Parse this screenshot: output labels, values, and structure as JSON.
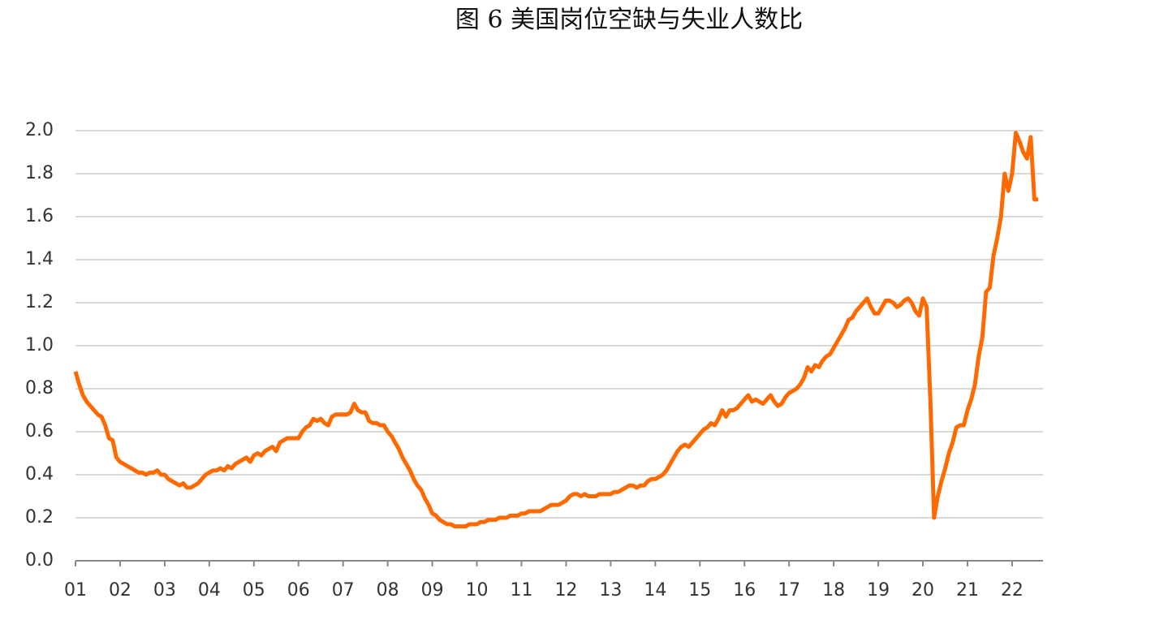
{
  "chart_data": {
    "type": "line",
    "title": "图 6 美国岗位空缺与失业人数比",
    "categories": [
      "01",
      null,
      null,
      null,
      null,
      null,
      null,
      null,
      null,
      null,
      null,
      null,
      "02",
      null,
      null,
      null,
      null,
      null,
      null,
      null,
      null,
      null,
      null,
      null,
      "03",
      null,
      null,
      null,
      null,
      null,
      null,
      null,
      null,
      null,
      null,
      null,
      "04",
      null,
      null,
      null,
      null,
      null,
      null,
      null,
      null,
      null,
      null,
      null,
      "05",
      null,
      null,
      null,
      null,
      null,
      null,
      null,
      null,
      null,
      null,
      null,
      "06",
      null,
      null,
      null,
      null,
      null,
      null,
      null,
      null,
      null,
      null,
      null,
      "07",
      null,
      null,
      null,
      null,
      null,
      null,
      null,
      null,
      null,
      null,
      null,
      "08",
      null,
      null,
      null,
      null,
      null,
      null,
      null,
      null,
      null,
      null,
      null,
      "09",
      null,
      null,
      null,
      null,
      null,
      null,
      null,
      null,
      null,
      null,
      null,
      "10",
      null,
      null,
      null,
      null,
      null,
      null,
      null,
      null,
      null,
      null,
      null,
      "11",
      null,
      null,
      null,
      null,
      null,
      null,
      null,
      null,
      null,
      null,
      null,
      "12",
      null,
      null,
      null,
      null,
      null,
      null,
      null,
      null,
      null,
      null,
      null,
      "13",
      null,
      null,
      null,
      null,
      null,
      null,
      null,
      null,
      null,
      null,
      null,
      "14",
      null,
      null,
      null,
      null,
      null,
      null,
      null,
      null,
      null,
      null,
      null,
      "15",
      null,
      null,
      null,
      null,
      null,
      null,
      null,
      null,
      null,
      null,
      null,
      "16",
      null,
      null,
      null,
      null,
      null,
      null,
      null,
      null,
      null,
      null,
      null,
      "17",
      null,
      null,
      null,
      null,
      null,
      null,
      null,
      null,
      null,
      null,
      null,
      "18",
      null,
      null,
      null,
      null,
      null,
      null,
      null,
      null,
      null,
      null,
      null,
      "19",
      null,
      null,
      null,
      null,
      null,
      null,
      null,
      null,
      null,
      null,
      null,
      "20",
      null,
      null,
      null,
      null,
      null,
      null,
      null,
      null,
      null,
      null,
      null,
      "21",
      null,
      null,
      null,
      null,
      null,
      null,
      null,
      null,
      null,
      null,
      null,
      "22",
      null,
      null,
      null,
      null,
      null,
      null,
      null
    ],
    "values": [
      0.88,
      0.82,
      0.77,
      0.74,
      0.72,
      0.7,
      0.68,
      0.67,
      0.63,
      0.57,
      0.56,
      0.48,
      0.46,
      0.45,
      0.44,
      0.43,
      0.42,
      0.41,
      0.41,
      0.4,
      0.41,
      0.41,
      0.42,
      0.4,
      0.4,
      0.38,
      0.37,
      0.36,
      0.35,
      0.36,
      0.34,
      0.34,
      0.35,
      0.36,
      0.38,
      0.4,
      0.41,
      0.42,
      0.42,
      0.43,
      0.42,
      0.44,
      0.43,
      0.45,
      0.46,
      0.47,
      0.48,
      0.46,
      0.49,
      0.5,
      0.49,
      0.51,
      0.52,
      0.53,
      0.51,
      0.55,
      0.56,
      0.57,
      0.57,
      0.57,
      0.57,
      0.6,
      0.62,
      0.63,
      0.66,
      0.65,
      0.66,
      0.64,
      0.63,
      0.67,
      0.68,
      0.68,
      0.68,
      0.68,
      0.69,
      0.73,
      0.7,
      0.69,
      0.69,
      0.65,
      0.64,
      0.64,
      0.63,
      0.63,
      0.6,
      0.58,
      0.55,
      0.52,
      0.48,
      0.45,
      0.42,
      0.38,
      0.35,
      0.33,
      0.29,
      0.26,
      0.22,
      0.21,
      0.19,
      0.18,
      0.17,
      0.17,
      0.16,
      0.16,
      0.16,
      0.16,
      0.17,
      0.17,
      0.17,
      0.18,
      0.18,
      0.19,
      0.19,
      0.19,
      0.2,
      0.2,
      0.2,
      0.21,
      0.21,
      0.21,
      0.22,
      0.22,
      0.23,
      0.23,
      0.23,
      0.23,
      0.24,
      0.25,
      0.26,
      0.26,
      0.26,
      0.27,
      0.28,
      0.3,
      0.31,
      0.31,
      0.3,
      0.31,
      0.3,
      0.3,
      0.3,
      0.31,
      0.31,
      0.31,
      0.31,
      0.32,
      0.32,
      0.33,
      0.34,
      0.35,
      0.35,
      0.34,
      0.35,
      0.35,
      0.37,
      0.38,
      0.38,
      0.39,
      0.4,
      0.42,
      0.45,
      0.48,
      0.51,
      0.53,
      0.54,
      0.53,
      0.55,
      0.57,
      0.59,
      0.61,
      0.62,
      0.64,
      0.63,
      0.66,
      0.7,
      0.67,
      0.7,
      0.7,
      0.71,
      0.73,
      0.75,
      0.77,
      0.74,
      0.75,
      0.74,
      0.73,
      0.75,
      0.77,
      0.74,
      0.72,
      0.73,
      0.76,
      0.78,
      0.79,
      0.8,
      0.82,
      0.85,
      0.9,
      0.88,
      0.91,
      0.9,
      0.93,
      0.95,
      0.96,
      0.99,
      1.02,
      1.05,
      1.08,
      1.12,
      1.13,
      1.16,
      1.18,
      1.2,
      1.22,
      1.18,
      1.15,
      1.15,
      1.18,
      1.21,
      1.21,
      1.2,
      1.18,
      1.19,
      1.21,
      1.22,
      1.2,
      1.16,
      1.14,
      1.22,
      1.18,
      0.75,
      0.2,
      0.3,
      0.37,
      0.43,
      0.5,
      0.55,
      0.62,
      0.63,
      0.63,
      0.7,
      0.75,
      0.82,
      0.95,
      1.04,
      1.25,
      1.27,
      1.42,
      1.5,
      1.6,
      1.8,
      1.72,
      1.8,
      1.99,
      1.95,
      1.9,
      1.87,
      1.97,
      1.68,
      1.68
    ],
    "color": "#ff6a00",
    "ylim": [
      0,
      2
    ],
    "yticks": [
      {
        "value": 0,
        "label": "0.0"
      },
      0.2,
      0.4,
      0.6,
      0.8,
      {
        "value": 1,
        "label": "1.0"
      },
      1.2,
      1.4,
      1.6,
      1.8,
      {
        "value": 2,
        "label": "2.0"
      }
    ],
    "grid": true
  }
}
